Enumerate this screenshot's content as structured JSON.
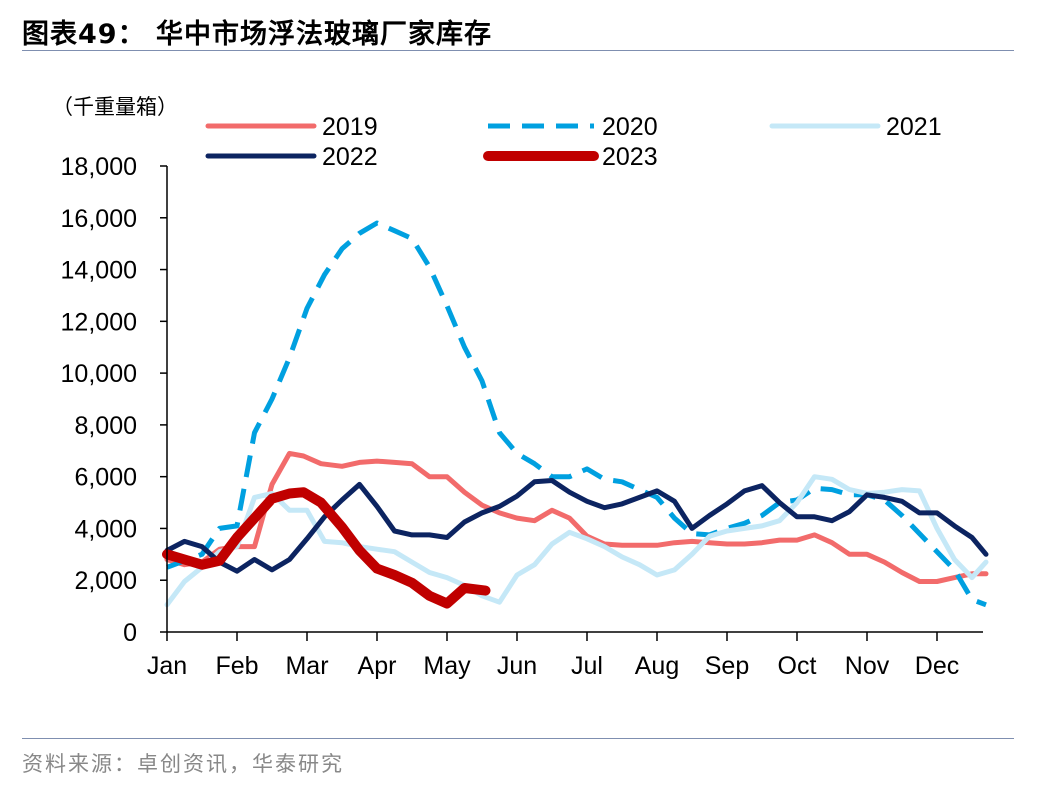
{
  "header": {
    "title": "图表49：  华中市场浮法玻璃厂家库存"
  },
  "footer": {
    "source": "资料来源：卓创资讯，华泰研究"
  },
  "chart_data": {
    "type": "line",
    "unit_label": "（千重量箱）",
    "ylim": [
      0,
      18000
    ],
    "yticks": [
      0,
      2000,
      4000,
      6000,
      8000,
      10000,
      12000,
      14000,
      16000,
      18000
    ],
    "ytick_labels": [
      "0",
      "2,000",
      "4,000",
      "6,000",
      "8,000",
      "10,000",
      "12,000",
      "14,000",
      "16,000",
      "18,000"
    ],
    "xlim": [
      0,
      11.7
    ],
    "x_categories": [
      "Jan",
      "Feb",
      "Mar",
      "Apr",
      "May",
      "Jun",
      "Jul",
      "Aug",
      "Sep",
      "Oct",
      "Nov",
      "Dec"
    ],
    "grid": false,
    "legend_position": "top",
    "series": [
      {
        "name": "2019",
        "color": "#f26b6b",
        "style": "solid",
        "width": 5,
        "points": [
          [
            0,
            2800
          ],
          [
            0.25,
            2600
          ],
          [
            0.5,
            2700
          ],
          [
            0.75,
            3200
          ],
          [
            1,
            3300
          ],
          [
            1.25,
            3300
          ],
          [
            1.5,
            5700
          ],
          [
            1.75,
            6900
          ],
          [
            1.95,
            6800
          ],
          [
            2.2,
            6500
          ],
          [
            2.5,
            6400
          ],
          [
            2.75,
            6550
          ],
          [
            3,
            6600
          ],
          [
            3.25,
            6550
          ],
          [
            3.5,
            6500
          ],
          [
            3.75,
            6000
          ],
          [
            4,
            6000
          ],
          [
            4.25,
            5400
          ],
          [
            4.5,
            4900
          ],
          [
            4.75,
            4600
          ],
          [
            5,
            4400
          ],
          [
            5.25,
            4300
          ],
          [
            5.5,
            4700
          ],
          [
            5.75,
            4400
          ],
          [
            6,
            3700
          ],
          [
            6.25,
            3400
          ],
          [
            6.5,
            3350
          ],
          [
            6.75,
            3350
          ],
          [
            7,
            3350
          ],
          [
            7.25,
            3450
          ],
          [
            7.5,
            3500
          ],
          [
            7.75,
            3450
          ],
          [
            8,
            3400
          ],
          [
            8.25,
            3400
          ],
          [
            8.5,
            3450
          ],
          [
            8.75,
            3550
          ],
          [
            9,
            3550
          ],
          [
            9.25,
            3750
          ],
          [
            9.5,
            3450
          ],
          [
            9.75,
            3000
          ],
          [
            10,
            3000
          ],
          [
            10.25,
            2700
          ],
          [
            10.5,
            2300
          ],
          [
            10.75,
            1950
          ],
          [
            11,
            1950
          ],
          [
            11.25,
            2100
          ],
          [
            11.5,
            2250
          ],
          [
            11.7,
            2250
          ]
        ]
      },
      {
        "name": "2020",
        "color": "#00a0e0",
        "style": "dashed",
        "width": 5,
        "points": [
          [
            0,
            2500
          ],
          [
            0.25,
            2750
          ],
          [
            0.5,
            3000
          ],
          [
            0.75,
            4000
          ],
          [
            1,
            4100
          ],
          [
            1.25,
            7700
          ],
          [
            1.5,
            9000
          ],
          [
            1.75,
            10600
          ],
          [
            2,
            12500
          ],
          [
            2.25,
            13800
          ],
          [
            2.5,
            14800
          ],
          [
            2.75,
            15400
          ],
          [
            3,
            15800
          ],
          [
            3.25,
            15500
          ],
          [
            3.5,
            15200
          ],
          [
            3.75,
            14100
          ],
          [
            4,
            12600
          ],
          [
            4.25,
            11000
          ],
          [
            4.5,
            9700
          ],
          [
            4.75,
            7700
          ],
          [
            5,
            6900
          ],
          [
            5.25,
            6500
          ],
          [
            5.5,
            6000
          ],
          [
            5.75,
            6000
          ],
          [
            6,
            6300
          ],
          [
            6.25,
            5900
          ],
          [
            6.5,
            5800
          ],
          [
            6.75,
            5500
          ],
          [
            7,
            5200
          ],
          [
            7.25,
            4400
          ],
          [
            7.5,
            3800
          ],
          [
            7.75,
            3750
          ],
          [
            8,
            4000
          ],
          [
            8.25,
            4200
          ],
          [
            8.5,
            4500
          ],
          [
            8.75,
            5000
          ],
          [
            9,
            5100
          ],
          [
            9.25,
            5550
          ],
          [
            9.5,
            5500
          ],
          [
            9.75,
            5300
          ],
          [
            10,
            5300
          ],
          [
            10.25,
            5100
          ],
          [
            10.5,
            4500
          ],
          [
            10.75,
            3800
          ],
          [
            11,
            3100
          ],
          [
            11.25,
            2400
          ],
          [
            11.5,
            1250
          ],
          [
            11.7,
            1050
          ]
        ]
      },
      {
        "name": "2021",
        "color": "#c5e8f7",
        "style": "solid",
        "width": 5,
        "points": [
          [
            0,
            1050
          ],
          [
            0.25,
            1950
          ],
          [
            0.5,
            2500
          ],
          [
            0.75,
            3100
          ],
          [
            1,
            3300
          ],
          [
            1.25,
            5200
          ],
          [
            1.5,
            5350
          ],
          [
            1.75,
            4700
          ],
          [
            2,
            4700
          ],
          [
            2.25,
            3500
          ],
          [
            2.5,
            3450
          ],
          [
            2.75,
            3300
          ],
          [
            3,
            3200
          ],
          [
            3.25,
            3100
          ],
          [
            3.5,
            2700
          ],
          [
            3.75,
            2300
          ],
          [
            4,
            2100
          ],
          [
            4.25,
            1800
          ],
          [
            4.5,
            1400
          ],
          [
            4.75,
            1150
          ],
          [
            5,
            2200
          ],
          [
            5.25,
            2600
          ],
          [
            5.5,
            3400
          ],
          [
            5.75,
            3850
          ],
          [
            6,
            3600
          ],
          [
            6.25,
            3300
          ],
          [
            6.5,
            2900
          ],
          [
            6.75,
            2600
          ],
          [
            7,
            2200
          ],
          [
            7.25,
            2400
          ],
          [
            7.5,
            3000
          ],
          [
            7.75,
            3700
          ],
          [
            8,
            3900
          ],
          [
            8.25,
            4000
          ],
          [
            8.5,
            4100
          ],
          [
            8.75,
            4300
          ],
          [
            9,
            5000
          ],
          [
            9.25,
            6000
          ],
          [
            9.5,
            5900
          ],
          [
            9.75,
            5500
          ],
          [
            10,
            5350
          ],
          [
            10.25,
            5400
          ],
          [
            10.5,
            5500
          ],
          [
            10.75,
            5450
          ],
          [
            11,
            4000
          ],
          [
            11.25,
            2800
          ],
          [
            11.5,
            2100
          ],
          [
            11.7,
            2700
          ]
        ]
      },
      {
        "name": "2022",
        "color": "#0c2461",
        "style": "solid",
        "width": 5,
        "points": [
          [
            0,
            3150
          ],
          [
            0.25,
            3500
          ],
          [
            0.5,
            3300
          ],
          [
            0.75,
            2700
          ],
          [
            1,
            2350
          ],
          [
            1.25,
            2800
          ],
          [
            1.5,
            2400
          ],
          [
            1.75,
            2800
          ],
          [
            2,
            3600
          ],
          [
            2.25,
            4450
          ],
          [
            2.5,
            5100
          ],
          [
            2.75,
            5700
          ],
          [
            3,
            4850
          ],
          [
            3.25,
            3900
          ],
          [
            3.5,
            3750
          ],
          [
            3.75,
            3750
          ],
          [
            4,
            3650
          ],
          [
            4.25,
            4250
          ],
          [
            4.5,
            4600
          ],
          [
            4.75,
            4850
          ],
          [
            5,
            5250
          ],
          [
            5.25,
            5800
          ],
          [
            5.5,
            5850
          ],
          [
            5.75,
            5400
          ],
          [
            6,
            5050
          ],
          [
            6.25,
            4800
          ],
          [
            6.5,
            4950
          ],
          [
            6.75,
            5200
          ],
          [
            7,
            5450
          ],
          [
            7.25,
            5050
          ],
          [
            7.5,
            4000
          ],
          [
            7.75,
            4500
          ],
          [
            8,
            4950
          ],
          [
            8.25,
            5450
          ],
          [
            8.5,
            5650
          ],
          [
            8.75,
            5000
          ],
          [
            9,
            4450
          ],
          [
            9.25,
            4450
          ],
          [
            9.5,
            4300
          ],
          [
            9.75,
            4650
          ],
          [
            10,
            5300
          ],
          [
            10.25,
            5200
          ],
          [
            10.5,
            5050
          ],
          [
            10.75,
            4600
          ],
          [
            11,
            4600
          ],
          [
            11.25,
            4100
          ],
          [
            11.5,
            3650
          ],
          [
            11.7,
            3000
          ]
        ]
      },
      {
        "name": "2023",
        "color": "#c00000",
        "style": "solid",
        "width": 10,
        "points": [
          [
            0,
            3000
          ],
          [
            0.25,
            2800
          ],
          [
            0.5,
            2600
          ],
          [
            0.75,
            2750
          ],
          [
            1,
            3650
          ],
          [
            1.25,
            4400
          ],
          [
            1.5,
            5150
          ],
          [
            1.75,
            5350
          ],
          [
            1.95,
            5400
          ],
          [
            2.2,
            5000
          ],
          [
            2.5,
            4050
          ],
          [
            2.75,
            3150
          ],
          [
            3,
            2450
          ],
          [
            3.25,
            2200
          ],
          [
            3.5,
            1900
          ],
          [
            3.75,
            1400
          ],
          [
            4,
            1100
          ],
          [
            4.25,
            1700
          ],
          [
            4.55,
            1600
          ]
        ]
      }
    ]
  }
}
